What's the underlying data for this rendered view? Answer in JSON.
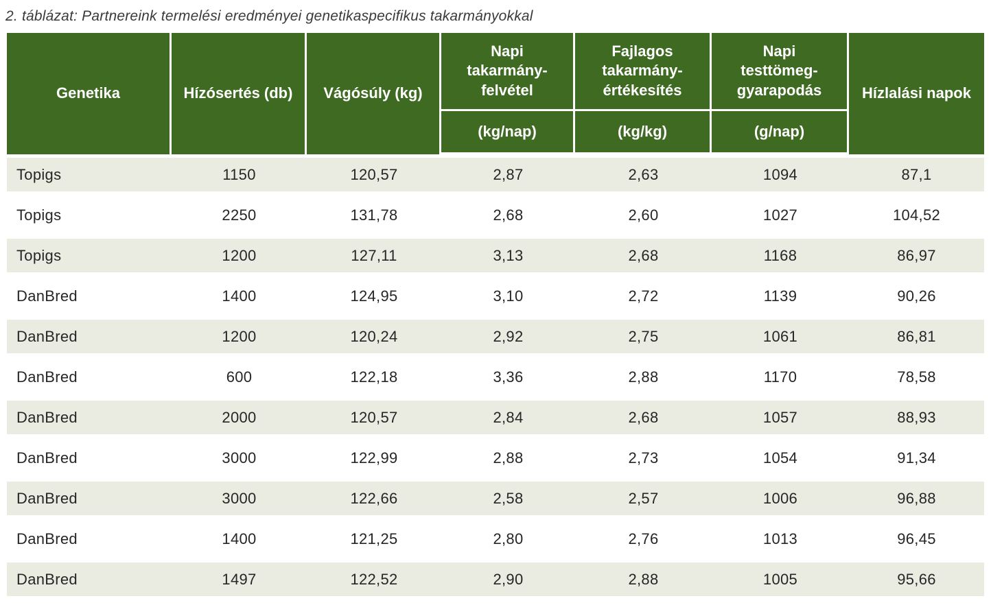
{
  "caption": "2. táblázat: Partnereink termelési eredményei genetikaspecifikus takarmányokkal",
  "table": {
    "columns": [
      {
        "label": "Genetika",
        "unit": ""
      },
      {
        "label": "Hízósertés (db)",
        "unit": ""
      },
      {
        "label": "Vágósúly (kg)",
        "unit": ""
      },
      {
        "label": "Napi\ntakarmány-\nfelvétel",
        "unit": "(kg/nap)"
      },
      {
        "label": "Fajlagos\ntakarmány-\nértékesítés",
        "unit": "(kg/kg)"
      },
      {
        "label": "Napi\ntesttömeg-\ngyarapodás",
        "unit": "(g/nap)"
      },
      {
        "label": "Hízlalási napok",
        "unit": ""
      }
    ],
    "rows": [
      [
        "Topigs",
        "1150",
        "120,57",
        "2,87",
        "2,63",
        "1094",
        "87,1"
      ],
      [
        "Topigs",
        "2250",
        "131,78",
        "2,68",
        "2,60",
        "1027",
        "104,52"
      ],
      [
        "Topigs",
        "1200",
        "127,11",
        "3,13",
        "2,68",
        "1168",
        "86,97"
      ],
      [
        "DanBred",
        "1400",
        "124,95",
        "3,10",
        "2,72",
        "1139",
        "90,26"
      ],
      [
        "DanBred",
        "1200",
        "120,24",
        "2,92",
        "2,75",
        "1061",
        "86,81"
      ],
      [
        "DanBred",
        "600",
        "122,18",
        "3,36",
        "2,88",
        "1170",
        "78,58"
      ],
      [
        "DanBred",
        "2000",
        "120,57",
        "2,84",
        "2,68",
        "1057",
        "88,93"
      ],
      [
        "DanBred",
        "3000",
        "122,99",
        "2,88",
        "2,73",
        "1054",
        "91,34"
      ],
      [
        "DanBred",
        "3000",
        "122,66",
        "2,58",
        "2,57",
        "1006",
        "96,88"
      ],
      [
        "DanBred",
        "1400",
        "121,25",
        "2,80",
        "2,76",
        "1013",
        "96,45"
      ],
      [
        "DanBred",
        "1497",
        "122,52",
        "2,90",
        "2,88",
        "1005",
        "95,66"
      ]
    ]
  },
  "colors": {
    "header_bg": "#3e6a22",
    "header_text": "#ffffff",
    "alt_row_bg": "#eaece2",
    "body_text": "#262626",
    "caption_text": "#3a3a3a"
  }
}
